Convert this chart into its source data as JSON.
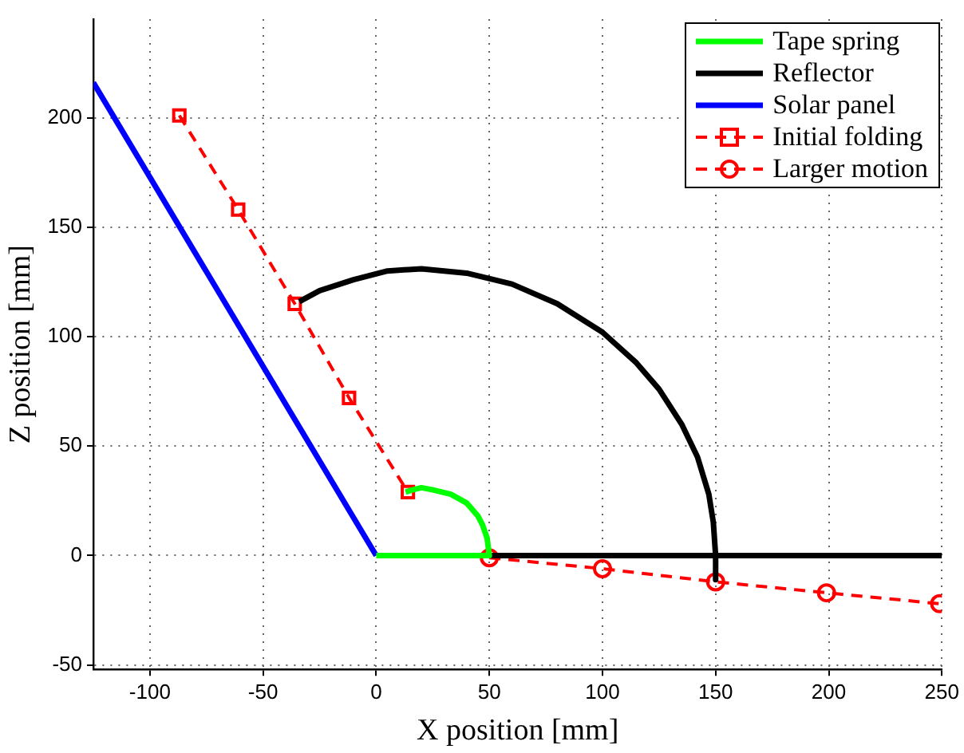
{
  "chart_data": {
    "type": "line",
    "xlabel": "X position [mm]",
    "ylabel": "Z position [mm]",
    "xlim": [
      -125,
      250
    ],
    "xticks": [
      -100,
      -50,
      0,
      50,
      100,
      150,
      200,
      250
    ],
    "ylim": [
      -52,
      245
    ],
    "yticks": [
      -50,
      0,
      50,
      100,
      150,
      200
    ],
    "grid": true,
    "legend": "top right",
    "series": [
      {
        "name": "Tape spring",
        "color": "#00ff00",
        "marker": "none",
        "line_style": "solid",
        "x": [
          0,
          50,
          50,
          49,
          47,
          45,
          40,
          33,
          25,
          20,
          16,
          13
        ],
        "values": [
          0,
          0,
          0,
          8,
          14,
          18,
          24,
          28,
          30,
          31,
          30,
          29
        ]
      },
      {
        "name": "Reflector",
        "color": "#000000",
        "marker": "none",
        "line_style": "solid",
        "x": [
          -34,
          -25,
          -10,
          5,
          20,
          40,
          60,
          80,
          100,
          115,
          125,
          135,
          142,
          147,
          149,
          150,
          150,
          null,
          50,
          250
        ],
        "values": [
          116,
          121,
          126,
          130,
          131,
          129,
          124,
          115,
          102,
          88,
          76,
          60,
          45,
          28,
          15,
          0,
          -11,
          null,
          0,
          0
        ]
      },
      {
        "name": "Solar panel",
        "color": "#0000ff",
        "marker": "none",
        "line_style": "solid",
        "x": [
          0,
          -125
        ],
        "values": [
          0,
          216
        ]
      },
      {
        "name": "Initial folding",
        "color": "#ff0000",
        "marker": "square",
        "line_style": "dashed",
        "x": [
          -87,
          -61,
          -36,
          -12,
          14
        ],
        "values": [
          201,
          158,
          115,
          72,
          29
        ]
      },
      {
        "name": "Larger motion",
        "color": "#ff0000",
        "marker": "circle",
        "line_style": "dashed",
        "x": [
          50,
          100,
          150,
          199,
          249
        ],
        "values": [
          -1,
          -6,
          -12,
          -17,
          -22
        ]
      }
    ]
  }
}
